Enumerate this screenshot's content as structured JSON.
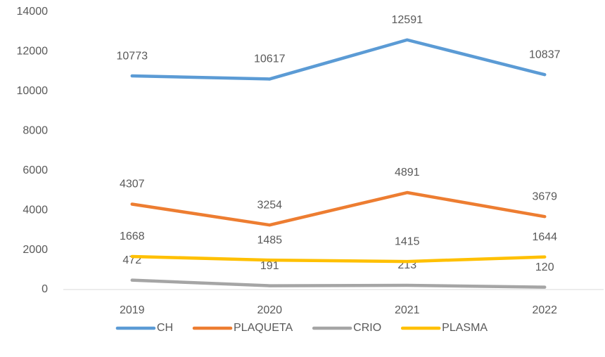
{
  "chart_data": {
    "type": "line",
    "categories": [
      "2019",
      "2020",
      "2021",
      "2022"
    ],
    "series": [
      {
        "name": "CH",
        "color": "#5b9bd5",
        "values": [
          10773,
          10617,
          12591,
          10837
        ]
      },
      {
        "name": "PLAQUETA",
        "color": "#ed7d31",
        "values": [
          4307,
          3254,
          4891,
          3679
        ]
      },
      {
        "name": "CRIO",
        "color": "#a5a5a5",
        "values": [
          472,
          191,
          213,
          120
        ]
      },
      {
        "name": "PLASMA",
        "color": "#ffc000",
        "values": [
          1668,
          1485,
          1415,
          1644
        ]
      }
    ],
    "ylim": [
      0,
      14000
    ],
    "yticks": [
      0,
      2000,
      4000,
      6000,
      8000,
      10000,
      12000,
      14000
    ],
    "grid": false,
    "legend": "bottom"
  }
}
